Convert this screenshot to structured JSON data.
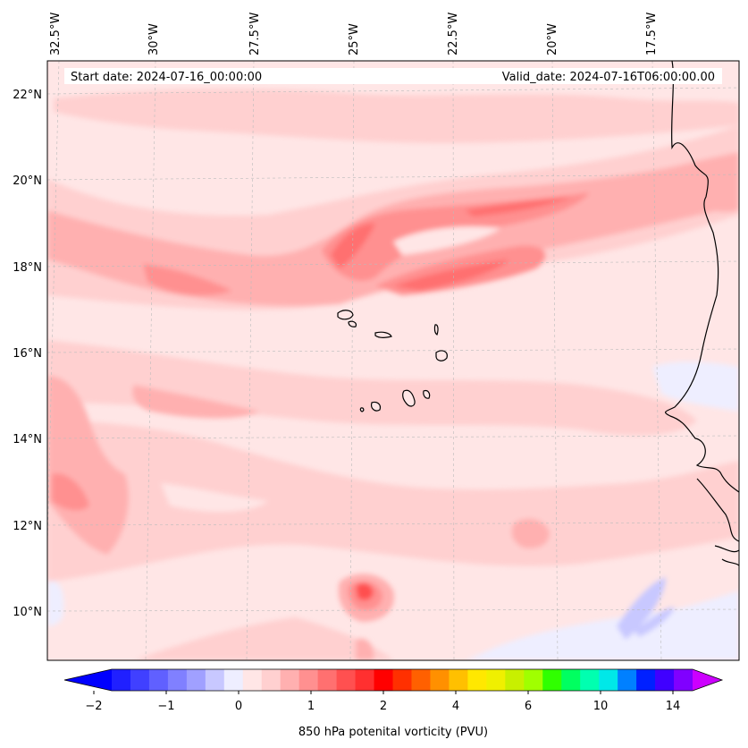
{
  "map": {
    "start_date": "Start date: 2024-07-16_00:00:00",
    "valid_date": "Valid_date: 2024-07-16T06:00:00.00",
    "lon_labels": [
      "32.5°W",
      "30°W",
      "27.5°W",
      "25°W",
      "22.5°W",
      "20°W",
      "17.5°W"
    ],
    "lat_labels": [
      "22°N",
      "20°N",
      "18°N",
      "16°N",
      "14°N",
      "12°N",
      "10°N"
    ],
    "land_outline_color": "#000000",
    "gridline_color": "#bbbbbb"
  },
  "colorbar": {
    "label": "850 hPa potenital vorticity (PVU)",
    "tick_labels": [
      "−2",
      "−1",
      "0",
      "1",
      "2",
      "4",
      "6",
      "10",
      "14"
    ],
    "colors": [
      "#2020ff",
      "#4040ff",
      "#6060ff",
      "#8080ff",
      "#a0a0ff",
      "#c8c8ff",
      "#eeeeff",
      "#ffe6e6",
      "#ffd0d0",
      "#ffb0b0",
      "#ff9090",
      "#ff7070",
      "#ff5050",
      "#ff3030",
      "#ff0000",
      "#ff3000",
      "#ff6000",
      "#ff9000",
      "#ffc000",
      "#ffe800",
      "#f0f000",
      "#c8f000",
      "#a0ff00",
      "#30ff00",
      "#00ff60",
      "#00ffb0",
      "#00e8e8",
      "#0080ff",
      "#0020ff",
      "#4000ff",
      "#8000ff"
    ],
    "under_color": "#0000ff",
    "over_color": "#cc00ff"
  }
}
